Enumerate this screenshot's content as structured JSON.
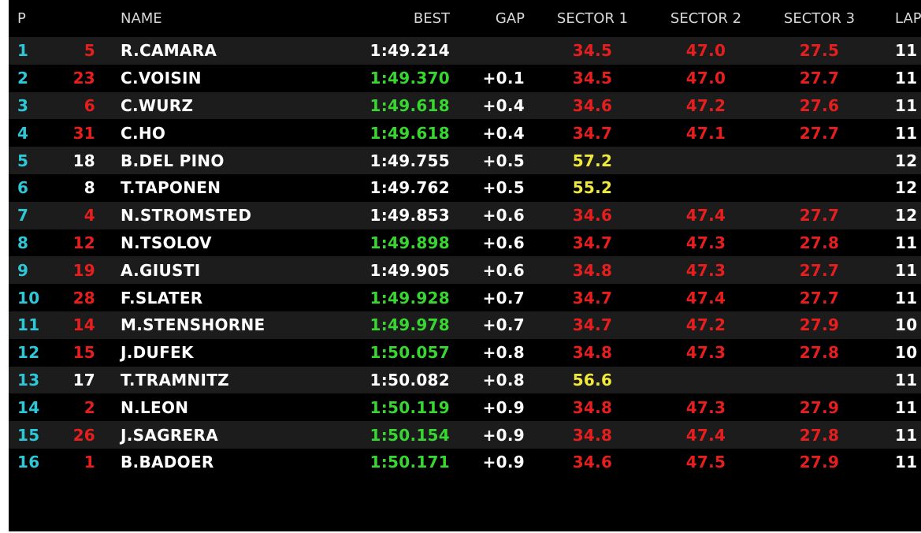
{
  "colors": {
    "position": "#2ec7d8",
    "white": "#ffffff",
    "red": "#e61e1e",
    "green": "#38d630",
    "yellow": "#f0e83a",
    "header": "#d8d8d8",
    "row_alt": "#1c1c1c",
    "background": "#000000"
  },
  "header": {
    "pos": "P",
    "name": "NAME",
    "best": "BEST",
    "gap": "GAP",
    "s1": "SECTOR 1",
    "s2": "SECTOR 2",
    "s3": "SECTOR 3",
    "laps": "LAP"
  },
  "rows": [
    {
      "pos": "1",
      "num": "5",
      "num_color": "red",
      "name": "R.CAMARA",
      "best": "1:49.214",
      "best_color": "white",
      "gap": "",
      "s1": "34.5",
      "s1_color": "red",
      "s2": "47.0",
      "s2_color": "red",
      "s3": "27.5",
      "s3_color": "red",
      "laps": "11"
    },
    {
      "pos": "2",
      "num": "23",
      "num_color": "red",
      "name": "C.VOISIN",
      "best": "1:49.370",
      "best_color": "green",
      "gap": "+0.1",
      "s1": "34.5",
      "s1_color": "red",
      "s2": "47.0",
      "s2_color": "red",
      "s3": "27.7",
      "s3_color": "red",
      "laps": "11"
    },
    {
      "pos": "3",
      "num": "6",
      "num_color": "red",
      "name": "C.WURZ",
      "best": "1:49.618",
      "best_color": "green",
      "gap": "+0.4",
      "s1": "34.6",
      "s1_color": "red",
      "s2": "47.2",
      "s2_color": "red",
      "s3": "27.6",
      "s3_color": "red",
      "laps": "11"
    },
    {
      "pos": "4",
      "num": "31",
      "num_color": "red",
      "name": "C.HO",
      "best": "1:49.618",
      "best_color": "green",
      "gap": "+0.4",
      "s1": "34.7",
      "s1_color": "red",
      "s2": "47.1",
      "s2_color": "red",
      "s3": "27.7",
      "s3_color": "red",
      "laps": "11"
    },
    {
      "pos": "5",
      "num": "18",
      "num_color": "white",
      "name": "B.DEL PINO",
      "best": "1:49.755",
      "best_color": "white",
      "gap": "+0.5",
      "s1": "57.2",
      "s1_color": "yellow",
      "s2": "",
      "s2_color": "red",
      "s3": "",
      "s3_color": "red",
      "laps": "12"
    },
    {
      "pos": "6",
      "num": "8",
      "num_color": "white",
      "name": "T.TAPONEN",
      "best": "1:49.762",
      "best_color": "white",
      "gap": "+0.5",
      "s1": "55.2",
      "s1_color": "yellow",
      "s2": "",
      "s2_color": "red",
      "s3": "",
      "s3_color": "red",
      "laps": "12"
    },
    {
      "pos": "7",
      "num": "4",
      "num_color": "red",
      "name": "N.STROMSTED",
      "best": "1:49.853",
      "best_color": "white",
      "gap": "+0.6",
      "s1": "34.6",
      "s1_color": "red",
      "s2": "47.4",
      "s2_color": "red",
      "s3": "27.7",
      "s3_color": "red",
      "laps": "12"
    },
    {
      "pos": "8",
      "num": "12",
      "num_color": "red",
      "name": "N.TSOLOV",
      "best": "1:49.898",
      "best_color": "green",
      "gap": "+0.6",
      "s1": "34.7",
      "s1_color": "red",
      "s2": "47.3",
      "s2_color": "red",
      "s3": "27.8",
      "s3_color": "red",
      "laps": "11"
    },
    {
      "pos": "9",
      "num": "19",
      "num_color": "red",
      "name": "A.GIUSTI",
      "best": "1:49.905",
      "best_color": "white",
      "gap": "+0.6",
      "s1": "34.8",
      "s1_color": "red",
      "s2": "47.3",
      "s2_color": "red",
      "s3": "27.7",
      "s3_color": "red",
      "laps": "11"
    },
    {
      "pos": "10",
      "num": "28",
      "num_color": "red",
      "name": "F.SLATER",
      "best": "1:49.928",
      "best_color": "green",
      "gap": "+0.7",
      "s1": "34.7",
      "s1_color": "red",
      "s2": "47.4",
      "s2_color": "red",
      "s3": "27.7",
      "s3_color": "red",
      "laps": "11"
    },
    {
      "pos": "11",
      "num": "14",
      "num_color": "red",
      "name": "M.STENSHORNE",
      "best": "1:49.978",
      "best_color": "green",
      "gap": "+0.7",
      "s1": "34.7",
      "s1_color": "red",
      "s2": "47.2",
      "s2_color": "red",
      "s3": "27.9",
      "s3_color": "red",
      "laps": "10"
    },
    {
      "pos": "12",
      "num": "15",
      "num_color": "red",
      "name": "J.DUFEK",
      "best": "1:50.057",
      "best_color": "green",
      "gap": "+0.8",
      "s1": "34.8",
      "s1_color": "red",
      "s2": "47.3",
      "s2_color": "red",
      "s3": "27.8",
      "s3_color": "red",
      "laps": "10"
    },
    {
      "pos": "13",
      "num": "17",
      "num_color": "white",
      "name": "T.TRAMNITZ",
      "best": "1:50.082",
      "best_color": "white",
      "gap": "+0.8",
      "s1": "56.6",
      "s1_color": "yellow",
      "s2": "",
      "s2_color": "red",
      "s3": "",
      "s3_color": "red",
      "laps": "11"
    },
    {
      "pos": "14",
      "num": "2",
      "num_color": "red",
      "name": "N.LEON",
      "best": "1:50.119",
      "best_color": "green",
      "gap": "+0.9",
      "s1": "34.8",
      "s1_color": "red",
      "s2": "47.3",
      "s2_color": "red",
      "s3": "27.9",
      "s3_color": "red",
      "laps": "11"
    },
    {
      "pos": "15",
      "num": "26",
      "num_color": "red",
      "name": "J.SAGRERA",
      "best": "1:50.154",
      "best_color": "green",
      "gap": "+0.9",
      "s1": "34.8",
      "s1_color": "red",
      "s2": "47.4",
      "s2_color": "red",
      "s3": "27.8",
      "s3_color": "red",
      "laps": "11"
    },
    {
      "pos": "16",
      "num": "1",
      "num_color": "red",
      "name": "B.BADOER",
      "best": "1:50.171",
      "best_color": "green",
      "gap": "+0.9",
      "s1": "34.6",
      "s1_color": "red",
      "s2": "47.5",
      "s2_color": "red",
      "s3": "27.9",
      "s3_color": "red",
      "laps": "11"
    }
  ]
}
